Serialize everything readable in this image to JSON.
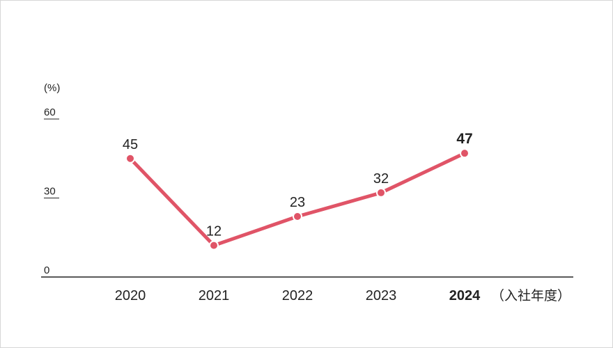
{
  "chart_data": {
    "type": "line",
    "y_unit": "(%)",
    "x_unit": "（入社年度）",
    "ylim": [
      0,
      60
    ],
    "yticks": [
      0,
      30,
      60
    ],
    "categories": [
      "2020",
      "2021",
      "2022",
      "2023",
      "2024"
    ],
    "values": [
      45,
      12,
      23,
      32,
      47
    ],
    "highlight_category": "2024",
    "line_color": "#e05467",
    "axis_color": "#222222",
    "grid": false
  }
}
